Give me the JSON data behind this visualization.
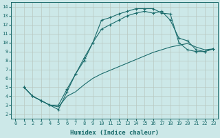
{
  "xlabel": "Humidex (Indice chaleur)",
  "bg_color": "#cce8e8",
  "grid_color": "#b8c8c0",
  "line_color": "#1a6b6b",
  "xlim": [
    -0.5,
    23.5
  ],
  "ylim": [
    1.5,
    14.5
  ],
  "xticks": [
    0,
    1,
    2,
    3,
    4,
    5,
    6,
    7,
    8,
    9,
    10,
    11,
    12,
    13,
    14,
    15,
    16,
    17,
    18,
    19,
    20,
    21,
    22,
    23
  ],
  "yticks": [
    2,
    3,
    4,
    5,
    6,
    7,
    8,
    9,
    10,
    11,
    12,
    13,
    14
  ],
  "line1_x": [
    1,
    2,
    3,
    4,
    5,
    6,
    7,
    8,
    9,
    10,
    11,
    12,
    13,
    14,
    15,
    16,
    17,
    18,
    19,
    20,
    21,
    22,
    23
  ],
  "line1_y": [
    5.0,
    4.0,
    3.5,
    3.0,
    3.0,
    4.8,
    6.5,
    8.0,
    10.0,
    12.5,
    12.8,
    13.2,
    13.5,
    13.8,
    13.8,
    13.8,
    13.3,
    13.2,
    10.0,
    9.2,
    9.0,
    9.0,
    9.3
  ],
  "line1_has_markers": true,
  "line2_x": [
    1,
    2,
    3,
    4,
    5,
    6,
    7,
    8,
    9,
    10,
    11,
    12,
    13,
    14,
    15,
    16,
    17,
    18,
    19,
    20,
    21,
    22,
    23
  ],
  "line2_y": [
    5.0,
    4.0,
    3.5,
    3.0,
    2.8,
    4.0,
    4.5,
    5.3,
    6.0,
    6.5,
    6.9,
    7.3,
    7.7,
    8.1,
    8.5,
    8.9,
    9.2,
    9.5,
    9.7,
    9.9,
    9.5,
    9.2,
    9.3
  ],
  "line2_has_markers": false,
  "line3_x": [
    1,
    2,
    3,
    4,
    5,
    6,
    7,
    8,
    9,
    10,
    11,
    12,
    13,
    14,
    15,
    16,
    17,
    18,
    19,
    20,
    21,
    22,
    23
  ],
  "line3_y": [
    5.0,
    4.0,
    3.5,
    3.0,
    2.5,
    4.5,
    6.5,
    8.3,
    10.0,
    11.5,
    12.0,
    12.5,
    13.0,
    13.3,
    13.5,
    13.3,
    13.5,
    12.5,
    10.5,
    10.2,
    9.2,
    9.0,
    9.3
  ],
  "line3_has_markers": true
}
